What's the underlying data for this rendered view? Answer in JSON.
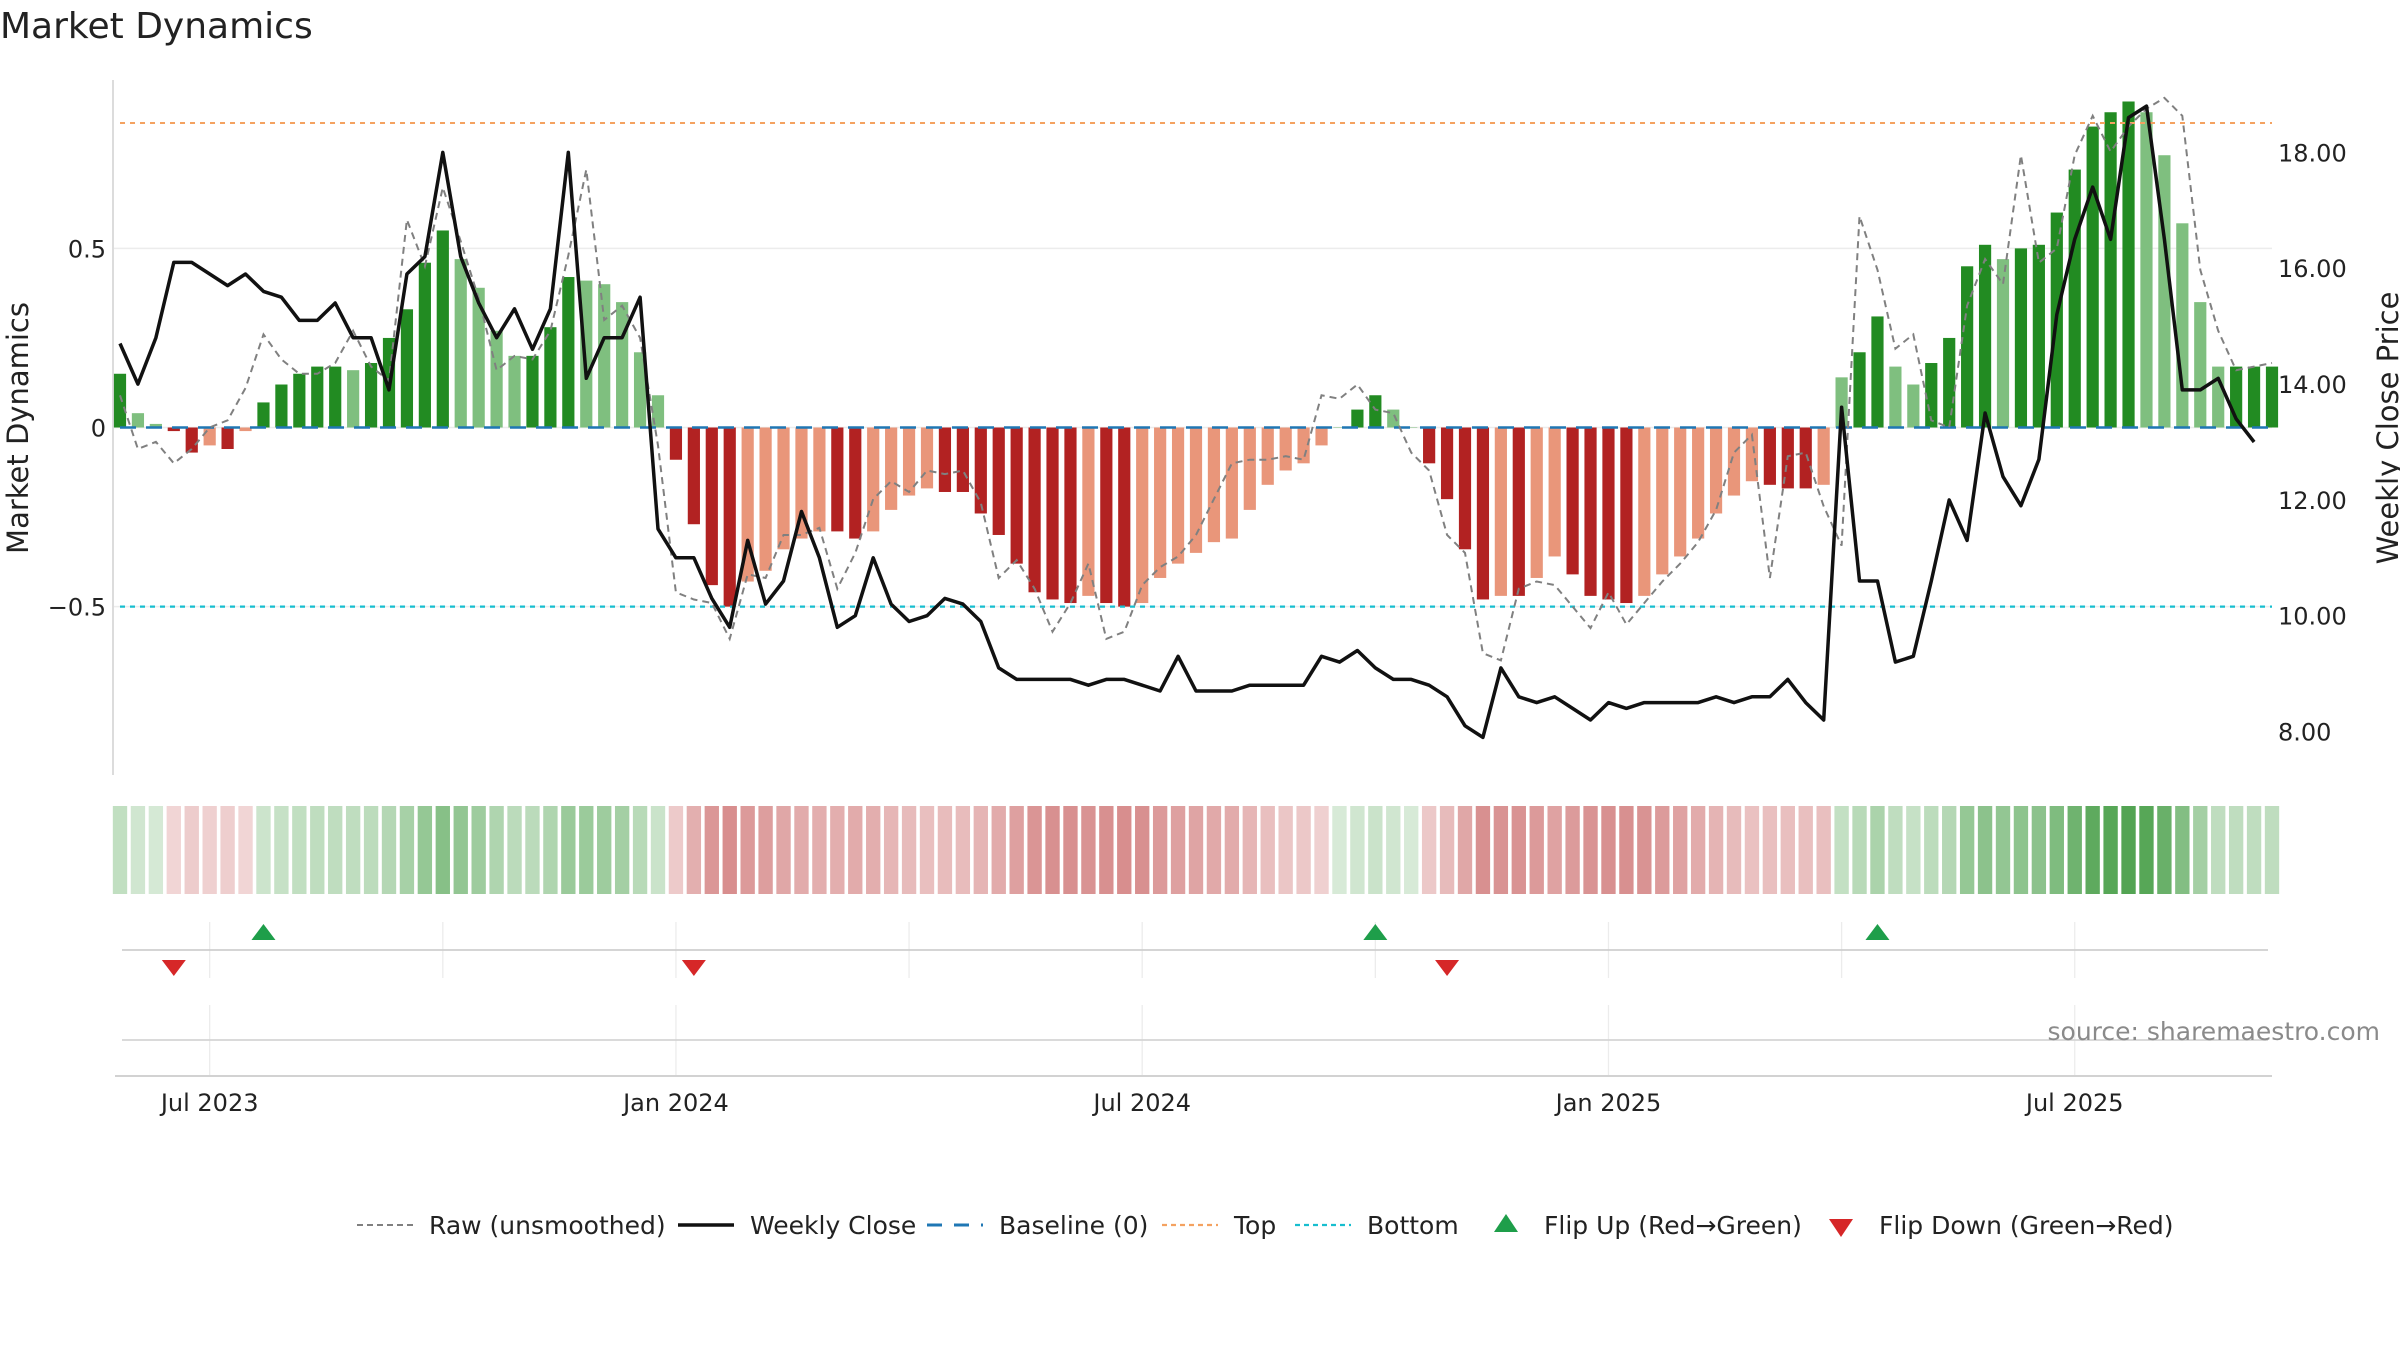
{
  "title": "Market Dynamics",
  "source_text": "source: sharemaestro.com",
  "colors": {
    "green_strong": "#228b22",
    "green_light": "#7fbf7f",
    "red_strong": "#b22222",
    "red_light": "#e9967a",
    "close_line": "#111111",
    "raw_line": "#808080",
    "baseline": "#1f77b4",
    "top": "#f4a261",
    "bottom": "#17becf",
    "flip_up": "#1e9e4a",
    "flip_down": "#d62728"
  },
  "chart_data": {
    "type": "bar",
    "title": "Market Dynamics",
    "ylabel_left": "Market Dynamics",
    "ylabel_right": "Weekly Close Price",
    "left_ylim": [
      -0.97,
      0.97
    ],
    "right_ylim": [
      7.25,
      19.25
    ],
    "left_ticks": [
      {
        "value": 0.5,
        "label": "0.5"
      },
      {
        "value": 0,
        "label": "0"
      },
      {
        "value": -0.5,
        "label": "−0.5"
      }
    ],
    "right_ticks": [
      {
        "value": 18,
        "label": "18.00"
      },
      {
        "value": 16,
        "label": "16.00"
      },
      {
        "value": 14,
        "label": "14.00"
      },
      {
        "value": 12,
        "label": "12.00"
      },
      {
        "value": 10,
        "label": "10.00"
      },
      {
        "value": 8,
        "label": "8.00"
      }
    ],
    "x_ticks": [
      {
        "week": 5,
        "label": "Jul 2023"
      },
      {
        "week": 31,
        "label": "Jan 2024"
      },
      {
        "week": 57,
        "label": "Jul 2024"
      },
      {
        "week": 83,
        "label": "Jan 2025"
      },
      {
        "week": 109,
        "label": "Jul 2025"
      }
    ],
    "start_date": "2023-06-01",
    "weeks": 121,
    "top_level": 0.85,
    "bottom_level": -0.5,
    "baseline_level": 0,
    "bar_values": [
      0.15,
      0.04,
      0.01,
      -0.01,
      -0.07,
      -0.05,
      -0.06,
      -0.01,
      0.07,
      0.12,
      0.15,
      0.17,
      0.17,
      0.16,
      0.18,
      0.25,
      0.33,
      0.46,
      0.55,
      0.47,
      0.39,
      0.27,
      0.2,
      0.2,
      0.28,
      0.42,
      0.41,
      0.4,
      0.35,
      0.21,
      0.09,
      -0.09,
      -0.27,
      -0.44,
      -0.5,
      -0.43,
      -0.4,
      -0.34,
      -0.31,
      -0.29,
      -0.29,
      -0.31,
      -0.29,
      -0.23,
      -0.19,
      -0.17,
      -0.18,
      -0.18,
      -0.24,
      -0.3,
      -0.38,
      -0.46,
      -0.48,
      -0.49,
      -0.47,
      -0.49,
      -0.5,
      -0.49,
      -0.42,
      -0.38,
      -0.35,
      -0.32,
      -0.31,
      -0.23,
      -0.16,
      -0.12,
      -0.1,
      -0.05,
      0,
      0.05,
      0.09,
      0.05,
      0,
      -0.1,
      -0.2,
      -0.34,
      -0.48,
      -0.47,
      -0.47,
      -0.42,
      -0.36,
      -0.41,
      -0.47,
      -0.48,
      -0.49,
      -0.47,
      -0.41,
      -0.36,
      -0.31,
      -0.24,
      -0.19,
      -0.15,
      -0.16,
      -0.17,
      -0.17,
      -0.16,
      0.14,
      0.21,
      0.31,
      0.17,
      0.12,
      0.18,
      0.25,
      0.45,
      0.51,
      0.47,
      0.5,
      0.51,
      0.6,
      0.72,
      0.84,
      0.88,
      0.91,
      0.88,
      0.76,
      0.57,
      0.35,
      0.17,
      0.17,
      0.17,
      0.17
    ],
    "raw_values": [
      0.09,
      -0.06,
      -0.04,
      -0.1,
      -0.06,
      0.0,
      0.02,
      0.11,
      0.26,
      0.19,
      0.15,
      0.15,
      0.18,
      0.27,
      0.17,
      0.13,
      0.58,
      0.45,
      0.67,
      0.52,
      0.36,
      0.16,
      0.2,
      0.19,
      0.27,
      0.48,
      0.72,
      0.3,
      0.34,
      0.25,
      -0.05,
      -0.46,
      -0.48,
      -0.49,
      -0.59,
      -0.41,
      -0.42,
      -0.3,
      -0.3,
      -0.28,
      -0.45,
      -0.35,
      -0.2,
      -0.15,
      -0.18,
      -0.12,
      -0.13,
      -0.12,
      -0.21,
      -0.42,
      -0.37,
      -0.45,
      -0.57,
      -0.49,
      -0.38,
      -0.59,
      -0.57,
      -0.44,
      -0.39,
      -0.36,
      -0.3,
      -0.2,
      -0.1,
      -0.09,
      -0.09,
      -0.08,
      -0.09,
      0.09,
      0.08,
      0.12,
      0.05,
      0.04,
      -0.07,
      -0.12,
      -0.3,
      -0.35,
      -0.63,
      -0.65,
      -0.45,
      -0.43,
      -0.44,
      -0.5,
      -0.56,
      -0.46,
      -0.55,
      -0.49,
      -0.43,
      -0.38,
      -0.32,
      -0.23,
      -0.07,
      -0.02,
      -0.42,
      -0.08,
      -0.07,
      -0.22,
      -0.33,
      0.59,
      0.44,
      0.22,
      0.26,
      0.02,
      0.0,
      0.34,
      0.47,
      0.4,
      0.76,
      0.46,
      0.5,
      0.76,
      0.87,
      0.77,
      0.84,
      0.89,
      0.92,
      0.87,
      0.44,
      0.27,
      0.16,
      0.17,
      0.18
    ],
    "close_values": [
      14.7,
      14.0,
      14.8,
      16.1,
      16.1,
      15.9,
      15.7,
      15.9,
      15.6,
      15.5,
      15.1,
      15.1,
      15.4,
      14.8,
      14.8,
      13.9,
      15.9,
      16.2,
      18.0,
      16.2,
      15.4,
      14.8,
      15.3,
      14.6,
      15.3,
      18.0,
      14.1,
      14.8,
      14.8,
      15.5,
      11.5,
      11.0,
      11.0,
      10.3,
      9.8,
      11.3,
      10.2,
      10.6,
      11.8,
      11.0,
      9.8,
      10.0,
      11.0,
      10.2,
      9.9,
      10.0,
      10.3,
      10.2,
      9.9,
      9.1,
      8.9,
      8.9,
      8.9,
      8.9,
      8.8,
      8.9,
      8.9,
      8.8,
      8.7,
      9.3,
      8.7,
      8.7,
      8.7,
      8.8,
      8.8,
      8.8,
      8.8,
      9.3,
      9.2,
      9.4,
      9.1,
      8.9,
      8.9,
      8.8,
      8.6,
      8.1,
      7.9,
      9.1,
      8.6,
      8.5,
      8.6,
      8.4,
      8.2,
      8.5,
      8.4,
      8.5,
      8.5,
      8.5,
      8.5,
      8.6,
      8.5,
      8.6,
      8.6,
      8.9,
      8.5,
      8.2,
      13.6,
      10.6,
      10.6,
      9.2,
      9.3,
      10.6,
      12.0,
      11.3,
      13.5,
      12.4,
      11.9,
      12.7,
      15.2,
      16.5,
      17.4,
      16.5,
      18.6,
      18.8,
      16.5,
      13.9,
      13.9,
      14.1,
      13.4,
      13.0
    ],
    "flip_up_weeks": [
      8,
      70,
      98
    ],
    "flip_down_weeks": [
      3,
      32,
      74
    ],
    "legend": [
      {
        "label": "Raw (unsmoothed)",
        "style": "dashed-gray"
      },
      {
        "label": "Weekly Close",
        "style": "solid-black"
      },
      {
        "label": "Baseline (0)",
        "style": "dashed-blue"
      },
      {
        "label": "Top",
        "style": "dotted-orange"
      },
      {
        "label": "Bottom",
        "style": "dotted-cyan"
      },
      {
        "label": "Flip Up (Red→Green)",
        "style": "triangle-up-green"
      },
      {
        "label": "Flip Down (Green→Red)",
        "style": "triangle-down-red"
      }
    ]
  }
}
